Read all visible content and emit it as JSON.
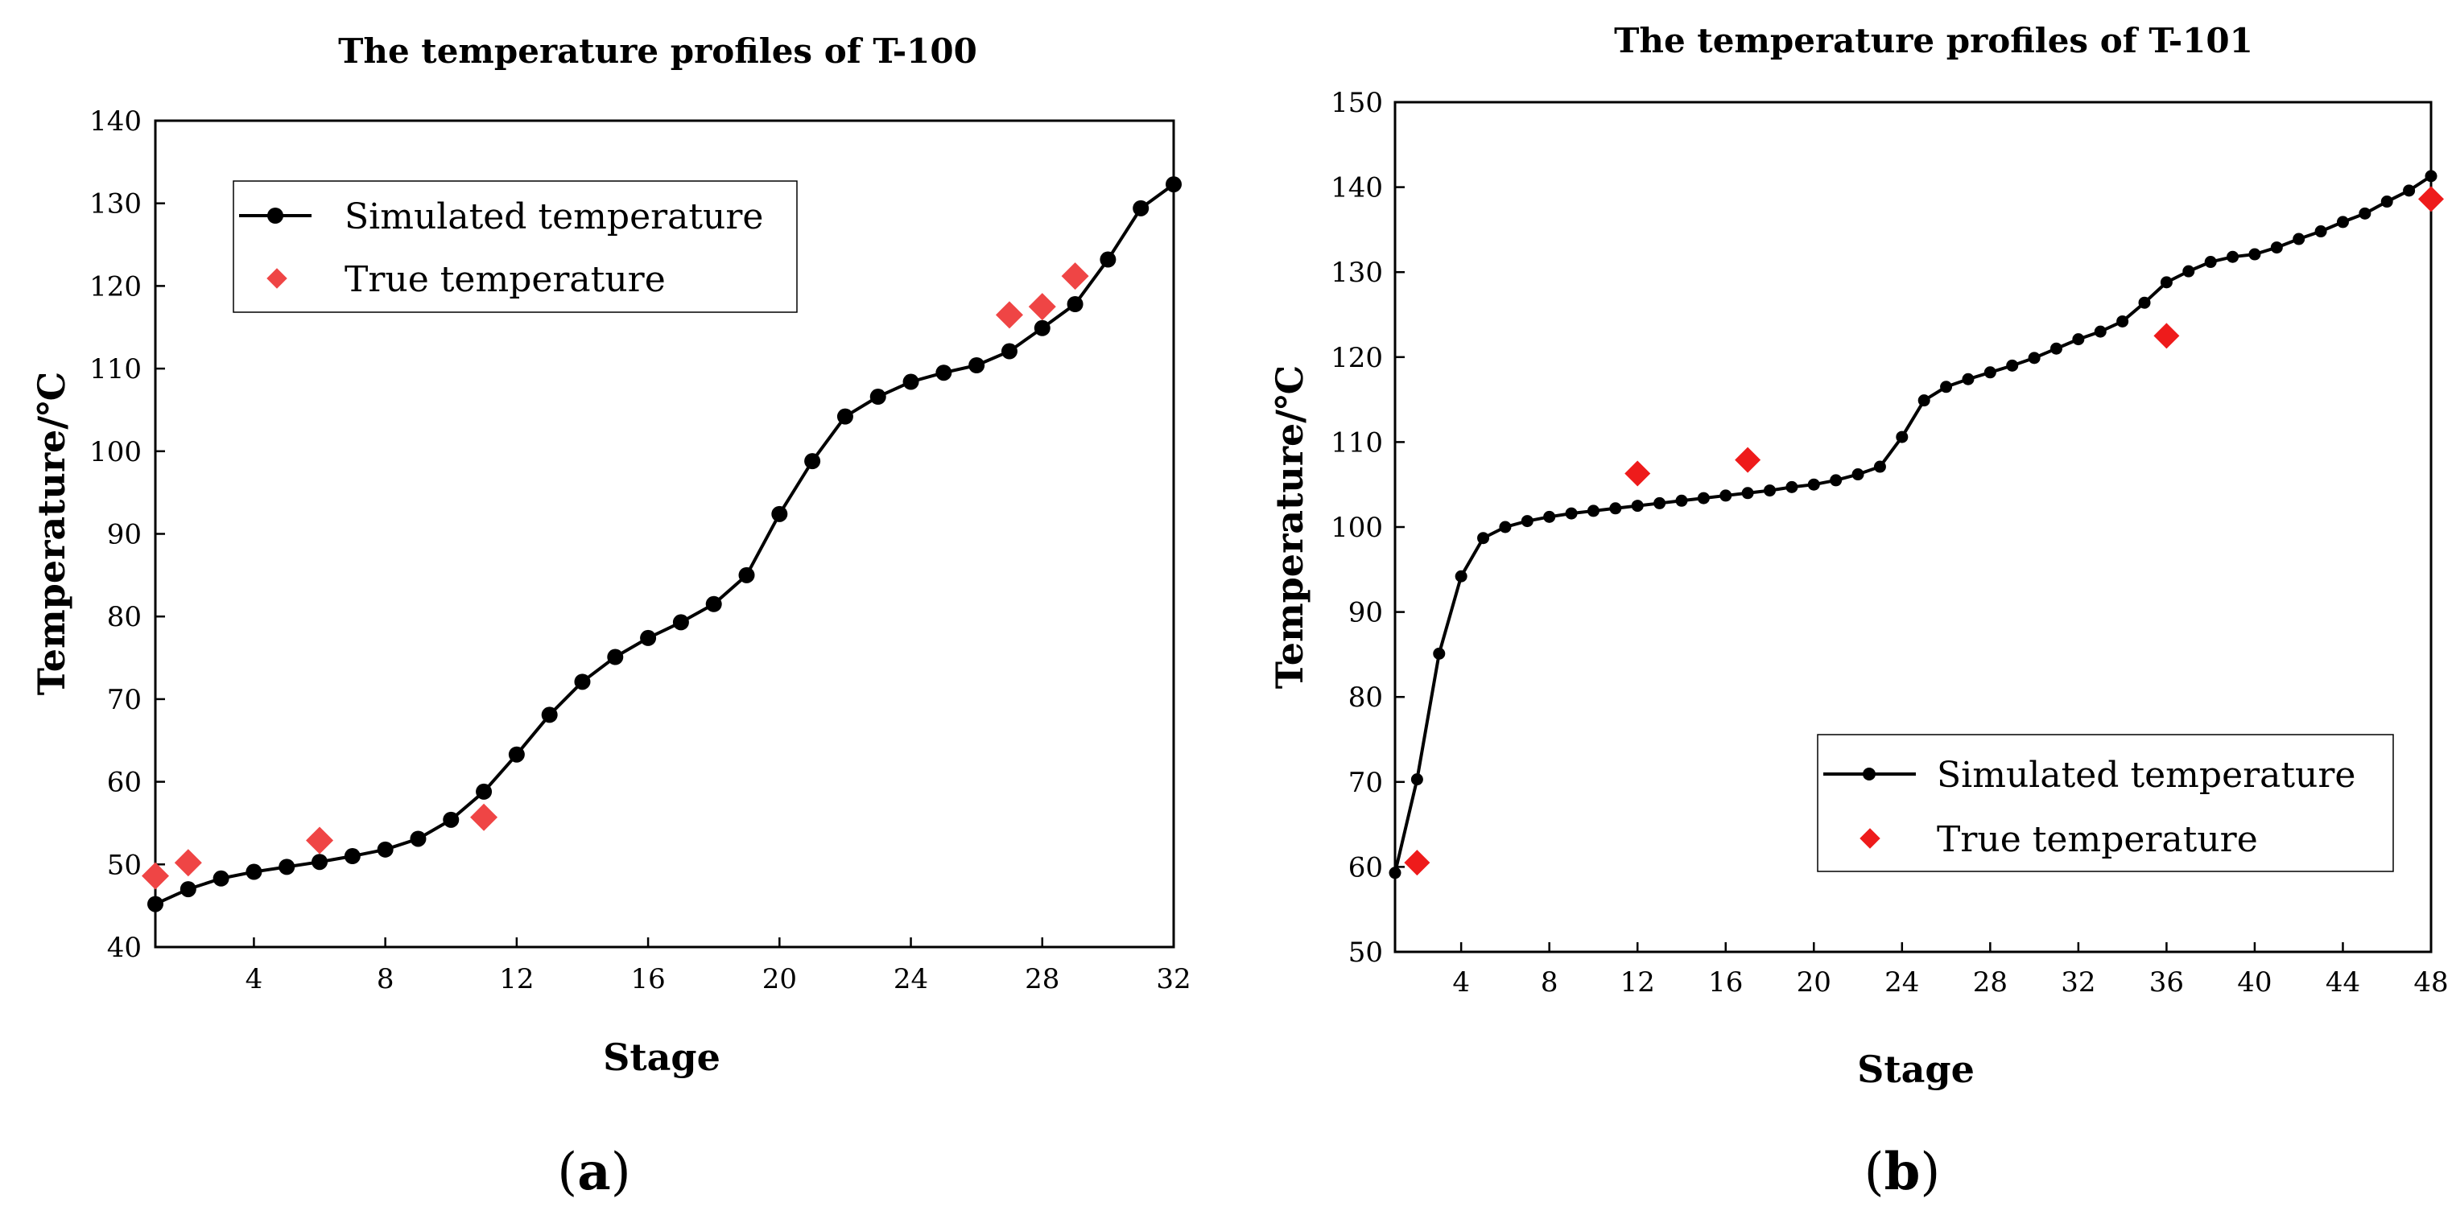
{
  "chart_data": [
    {
      "type": "line",
      "panel_label": "a",
      "title": "The temperature profiles of T-100",
      "xlabel": "Stage",
      "ylabel": "Temperature/℃",
      "xlim": [
        1,
        32
      ],
      "ylim": [
        40,
        140
      ],
      "xticks": [
        4,
        8,
        12,
        16,
        20,
        24,
        28,
        32
      ],
      "yticks": [
        40,
        50,
        60,
        70,
        80,
        90,
        100,
        110,
        120,
        130,
        140
      ],
      "legend_position": "top-left",
      "series": [
        {
          "name": "Simulated temperature",
          "kind": "line-marker",
          "color": "#000000",
          "x": [
            1,
            2,
            3,
            4,
            5,
            6,
            7,
            8,
            9,
            10,
            11,
            12,
            13,
            14,
            15,
            16,
            17,
            18,
            19,
            20,
            21,
            22,
            23,
            24,
            25,
            26,
            27,
            28,
            29,
            30,
            31,
            32
          ],
          "y": [
            45.2,
            47.0,
            48.3,
            49.1,
            49.7,
            50.3,
            51.0,
            51.8,
            53.1,
            55.4,
            58.8,
            63.3,
            68.1,
            72.1,
            75.1,
            77.4,
            79.3,
            81.5,
            85.0,
            92.4,
            98.8,
            104.2,
            106.6,
            108.4,
            109.5,
            110.4,
            112.1,
            114.9,
            117.8,
            123.2,
            129.4,
            132.3
          ]
        },
        {
          "name": "True temperature",
          "kind": "scatter",
          "color": "#ef4545",
          "x": [
            1,
            2,
            6,
            11,
            27,
            28,
            29
          ],
          "y": [
            48.6,
            50.2,
            52.9,
            55.7,
            116.5,
            117.5,
            121.2
          ]
        }
      ]
    },
    {
      "type": "line",
      "panel_label": "b",
      "title": "The temperature profiles of T-101",
      "xlabel": "Stage",
      "ylabel": "Temperature/℃",
      "xlim": [
        1,
        48
      ],
      "ylim": [
        50,
        150
      ],
      "xticks": [
        4,
        8,
        12,
        16,
        20,
        24,
        28,
        32,
        36,
        40,
        44,
        48
      ],
      "yticks": [
        50,
        60,
        70,
        80,
        90,
        100,
        110,
        120,
        130,
        140,
        150
      ],
      "legend_position": "bottom-right",
      "series": [
        {
          "name": "Simulated temperature",
          "kind": "line-marker",
          "color": "#000000",
          "x": [
            1,
            2,
            3,
            4,
            5,
            6,
            7,
            8,
            9,
            10,
            11,
            12,
            13,
            14,
            15,
            16,
            17,
            18,
            19,
            20,
            21,
            22,
            23,
            24,
            25,
            26,
            27,
            28,
            29,
            30,
            31,
            32,
            33,
            34,
            35,
            36,
            37,
            38,
            39,
            40,
            41,
            42,
            43,
            44,
            45,
            46,
            47,
            48
          ],
          "y": [
            59.3,
            70.3,
            85.1,
            94.2,
            98.7,
            100.0,
            100.7,
            101.2,
            101.6,
            101.9,
            102.2,
            102.5,
            102.8,
            103.1,
            103.4,
            103.7,
            104.0,
            104.3,
            104.7,
            105.0,
            105.5,
            106.2,
            107.1,
            110.6,
            114.9,
            116.5,
            117.4,
            118.2,
            119.0,
            119.9,
            121.0,
            122.1,
            123.0,
            124.2,
            126.4,
            128.8,
            130.1,
            131.2,
            131.8,
            132.1,
            132.9,
            133.9,
            134.8,
            135.9,
            136.9,
            138.3,
            139.6,
            141.3
          ]
        },
        {
          "name": "True temperature",
          "kind": "scatter",
          "color": "#ee1b1b",
          "x": [
            2,
            12,
            17,
            36,
            48
          ],
          "y": [
            60.5,
            106.3,
            107.9,
            122.5,
            138.6
          ]
        }
      ]
    }
  ]
}
